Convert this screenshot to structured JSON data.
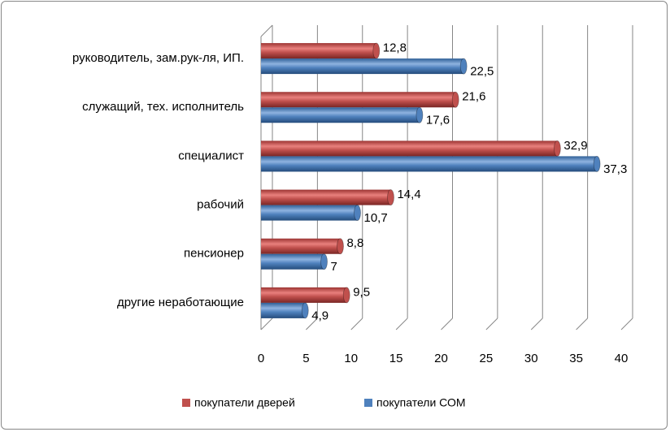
{
  "chart_data": {
    "type": "bar",
    "orientation": "horizontal",
    "categories": [
      "руководитель, зам.рук-ля, ИП.",
      "служащий, тех. исполнитель",
      "специалист",
      "рабочий",
      "пенсионер",
      "другие неработающие"
    ],
    "series": [
      {
        "name": "покупатели дверей",
        "color": "#c0504d",
        "values": [
          12.8,
          21.6,
          32.9,
          14.4,
          8.8,
          9.5
        ],
        "labels": [
          "12,8",
          "21,6",
          "32,9",
          "14,4",
          "8,8",
          "9,5"
        ]
      },
      {
        "name": "покупатели СОМ",
        "color": "#4f81bd",
        "values": [
          22.5,
          17.6,
          37.3,
          10.7,
          7,
          4.9
        ],
        "labels": [
          "22,5",
          "17,6",
          "37,3",
          "10,7",
          "7",
          "4,9"
        ]
      }
    ],
    "xlim": [
      0,
      40
    ],
    "xticks": [
      "0",
      "5",
      "10",
      "15",
      "20",
      "25",
      "30",
      "35",
      "40"
    ],
    "title": "",
    "xlabel": "",
    "ylabel": "",
    "grid": true,
    "legend_position": "bottom"
  }
}
